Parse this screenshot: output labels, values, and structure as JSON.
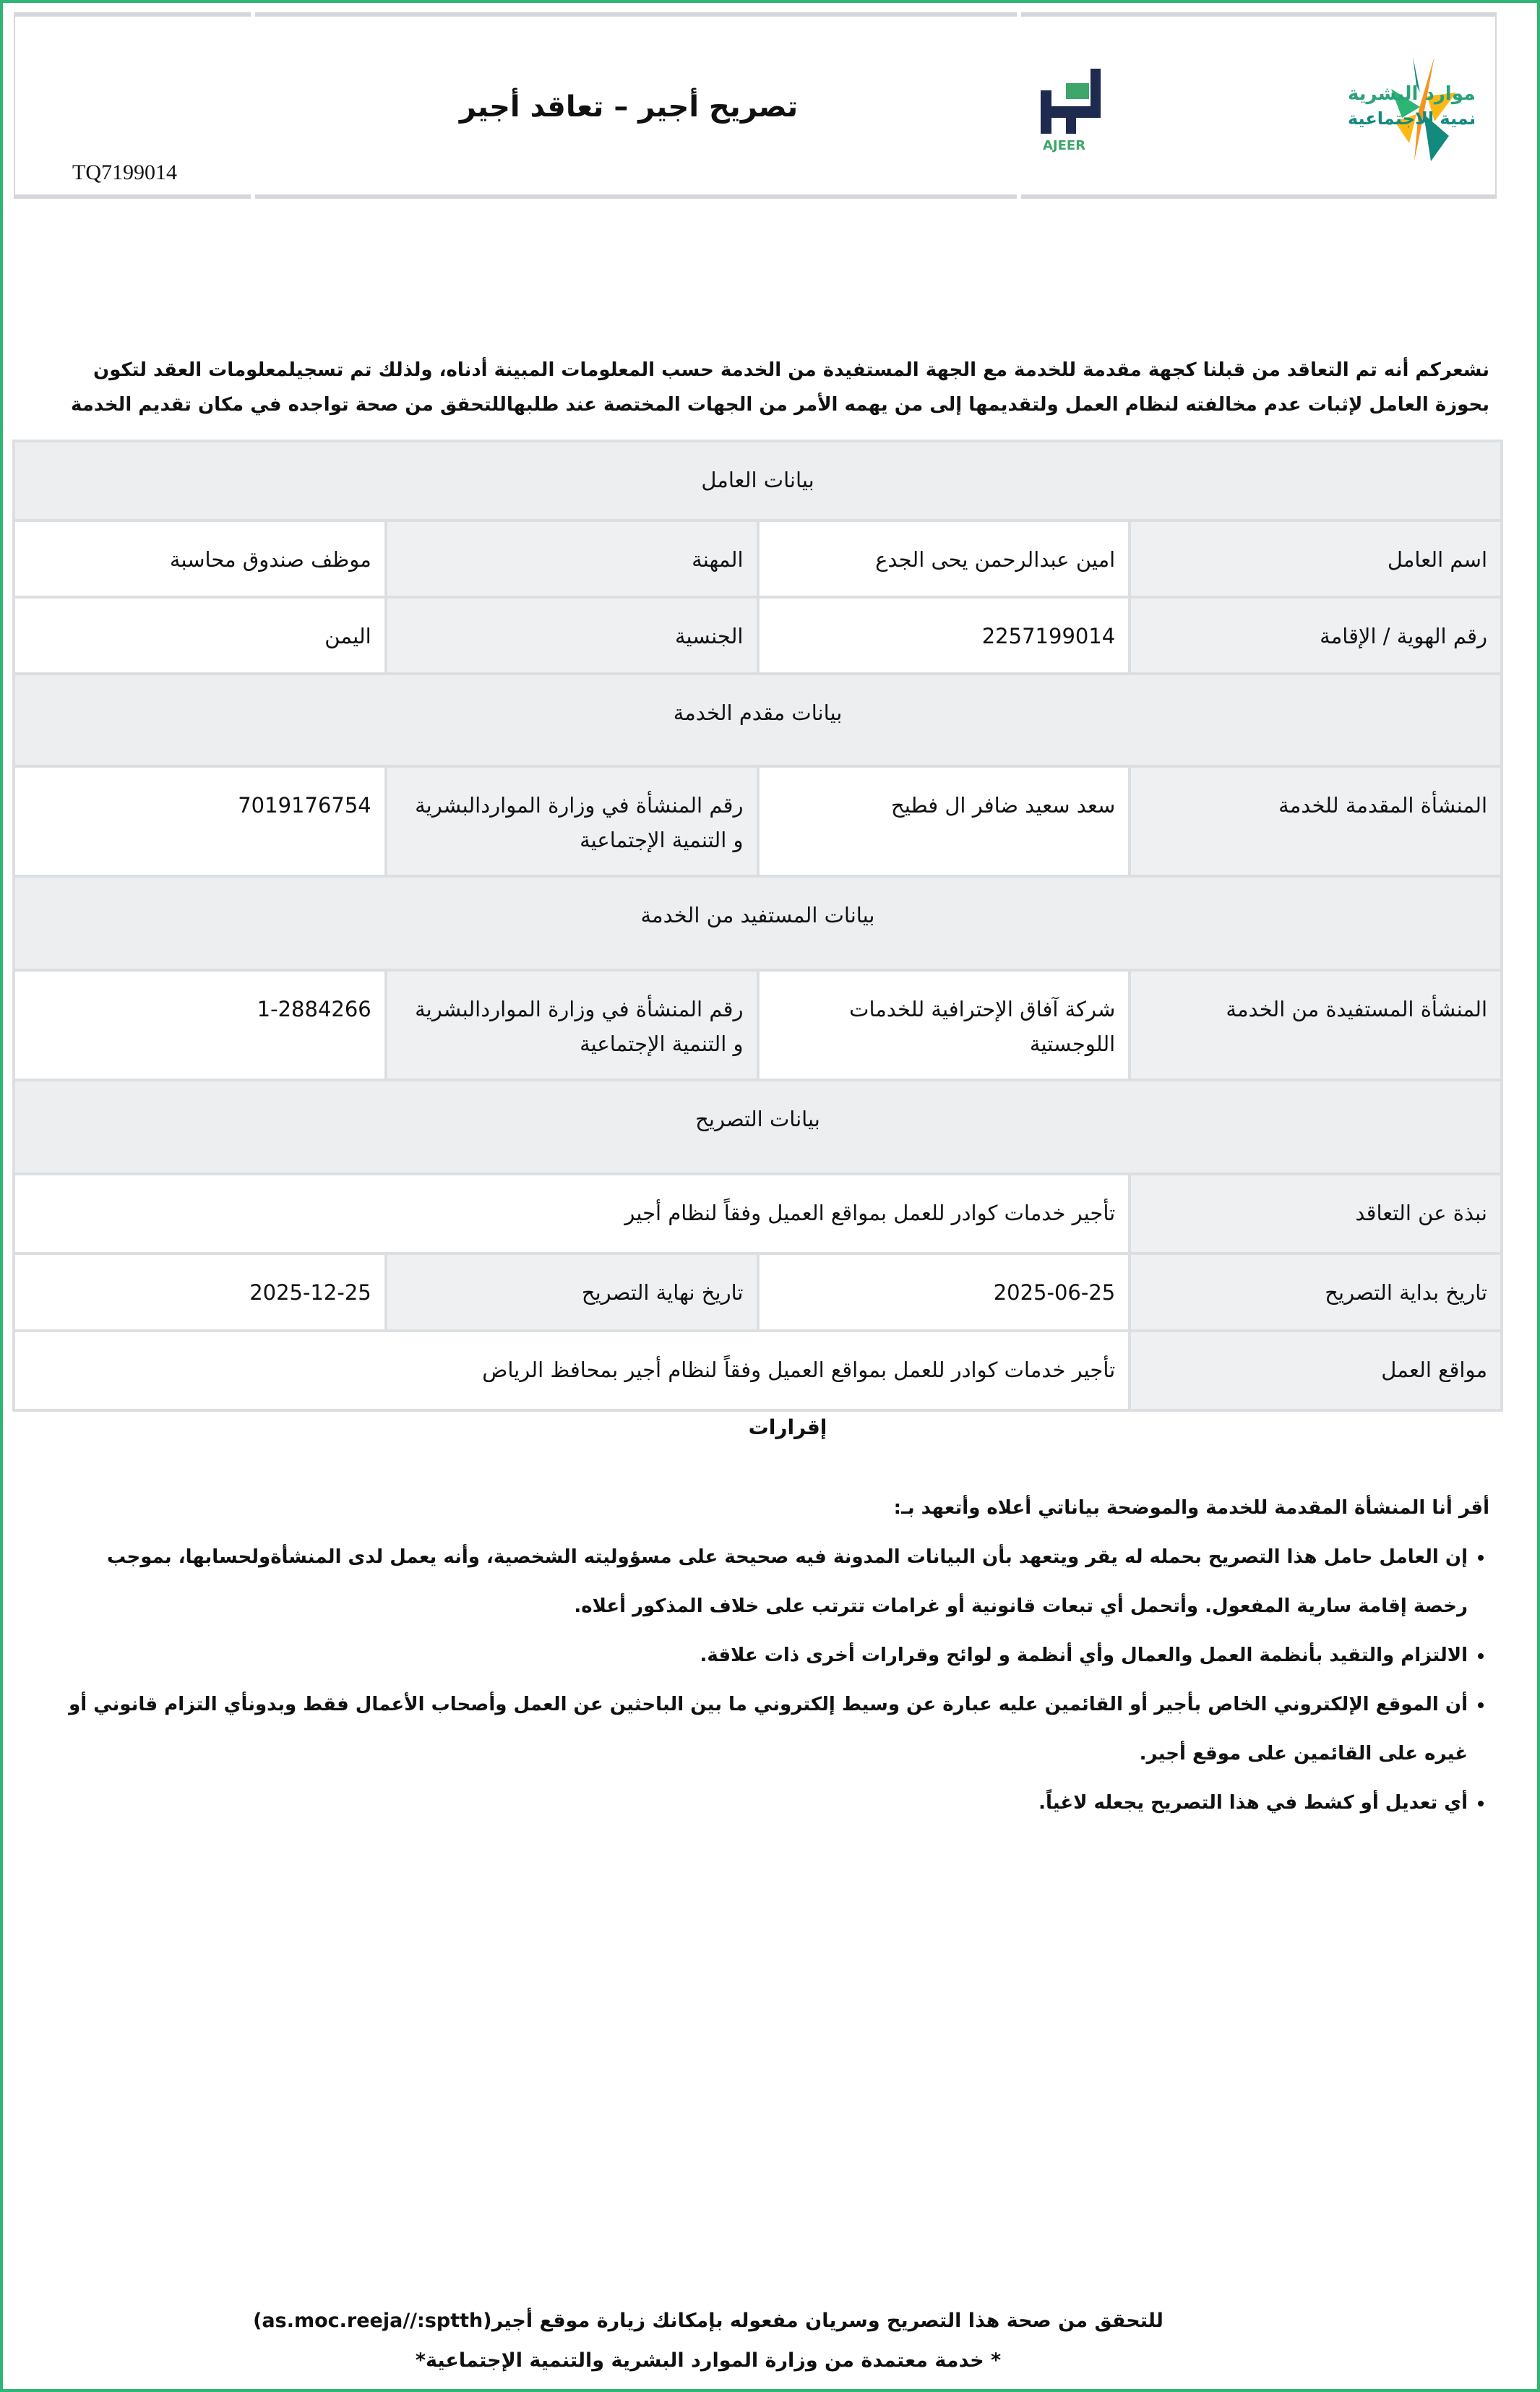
{
  "header": {
    "title": "تصريح أجير –  تعاقد أجير",
    "reference": "TQ7199014",
    "ministry_logo": {
      "line1": "الموارد البشرية",
      "line2": "والتنمية الاجتماعية",
      "colors": [
        "#2bb673",
        "#f7941d",
        "#fdb913",
        "#138a7e"
      ]
    },
    "ajeer_logo": {
      "arabic": "أجير",
      "latin": "AJEER",
      "colors": [
        "#1f2a4f",
        "#3fa66b"
      ]
    }
  },
  "intro": "نشعركم أنه تم التعاقد من قبلنا كجهة مقدمة للخدمة مع الجهة المستفيدة من الخدمة حسب المعلومات المبينة أدناه، ولذلك تم تسجيلمعلومات العقد لتكون بحوزة العامل لإثبات عدم مخالفته لنظام العمل ولتقديمها إلى من يهمه الأمر من الجهات المختصة عند طلبهاللتحقق من صحة تواجده في مكان تقديم الخدمة",
  "worker": {
    "section": "بيانات العامل",
    "name_label": "اسم العامل",
    "name": "امين عبدالرحمن يحى الجدع",
    "job_label": "المهنة",
    "job": "موظف صندوق محاسبة",
    "id_label": "رقم الهوية / الإقامة",
    "id": "2257199014",
    "nationality_label": "الجنسية",
    "nationality": "اليمن"
  },
  "provider": {
    "section": "بيانات مقدم الخدمة",
    "org_label": "المنشأة المقدمة للخدمة",
    "org": "سعد سعيد ضافر ال فطيح",
    "number_label": "رقم المنشأة في وزارة المواردالبشرية و التنمية الإجتماعية",
    "number": "7019176754"
  },
  "beneficiary": {
    "section": "بيانات المستفيد من الخدمة",
    "org_label": "المنشأة المستفيدة من الخدمة",
    "org": "شركة آفاق الإحترافية للخدمات اللوجستية",
    "number_label": "رقم المنشأة في وزارة المواردالبشرية و التنمية الإجتماعية",
    "number": "1-2884266"
  },
  "permit": {
    "section": "بيانات التصريح",
    "about_label": "نبذة عن التعاقد",
    "about": "تأجير خدمات كوادر للعمل بمواقع العميل وفقاً لنظام أجير",
    "start_label": "تاريخ بداية التصريح",
    "start": "2025-06-25",
    "end_label": "تاريخ نهاية التصريح",
    "end": "2025-12-25",
    "sites_label": "مواقع العمل",
    "sites": "تأجير خدمات كوادر للعمل بمواقع العميل وفقاً لنظام أجير بمحافظ الرياض"
  },
  "declarations": {
    "title": "إقرارات",
    "intro": "أقر أنا المنشأة المقدمة للخدمة والموضحة بياناتي أعلاه وأتعهد بـ:",
    "items": [
      "إن العامل حامل هذا التصريح بحمله له يقر ويتعهد بأن البيانات المدونة فيه صحيحة على مسؤوليته الشخصية، وأنه يعمل لدى المنشأةولحسابها، بموجب رخصة إقامة سارية المفعول. وأتحمل أي تبعات قانونية أو غرامات تترتب على خلاف المذكور أعلاه.",
      "الالتزام والتقيد بأنظمة العمل والعمال وأي أنظمة و لوائح وقرارات أخرى ذات علاقة.",
      "أن الموقع الإلكتروني الخاص بأجير أو القائمين عليه عبارة عن وسيط إلكتروني ما بين الباحثين عن العمل وأصحاب الأعمال فقط وبدونأي التزام قانوني أو غيره على القائمين على موقع أجير.",
      "أي تعديل أو كشط في هذا التصريح يجعله لاغياً."
    ]
  },
  "footer": {
    "verify": "للتحقق من صحة هذا التصريح وسريان مفعوله بإمكانك زيارة موقع أجير(as.moc.reeja//:sptth)",
    "approved": "* خدمة معتمدة من وزارة الموارد البشرية والتنمية الإجتماعية*"
  },
  "colors": {
    "page_border": "#2fb574",
    "label_bg": "#eef0f1",
    "cell_border": "#dcdfe2"
  }
}
